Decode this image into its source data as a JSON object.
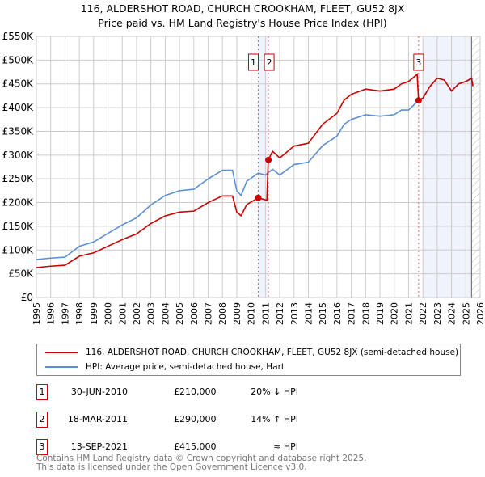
{
  "chart_data": {
    "type": "line",
    "title": "116, ALDERSHOT ROAD, CHURCH CROOKHAM, FLEET, GU52 8JX",
    "subtitle": "Price paid vs. HM Land Registry's House Price Index (HPI)",
    "xlim": [
      1995,
      2026
    ],
    "ylim": [
      0,
      550000
    ],
    "yticks": [
      0,
      50000,
      100000,
      150000,
      200000,
      250000,
      300000,
      350000,
      400000,
      450000,
      500000,
      550000
    ],
    "ytick_labels": [
      "£0",
      "£50K",
      "£100K",
      "£150K",
      "£200K",
      "£250K",
      "£300K",
      "£350K",
      "£400K",
      "£450K",
      "£500K",
      "£550K"
    ],
    "xticks": [
      1995,
      1996,
      1997,
      1998,
      1999,
      2000,
      2001,
      2002,
      2003,
      2004,
      2005,
      2006,
      2007,
      2008,
      2009,
      2010,
      2011,
      2012,
      2013,
      2014,
      2015,
      2016,
      2017,
      2018,
      2019,
      2020,
      2021,
      2022,
      2023,
      2024,
      2025,
      2026
    ],
    "grid": true,
    "series": [
      {
        "name": "116, ALDERSHOT ROAD, CHURCH CROOKHAM, FLEET, GU52 8JX (semi-detached house)",
        "color": "#cc0000",
        "x": [
          1995,
          1996,
          1997,
          1998,
          1999,
          2000,
          2001,
          2002,
          2003,
          2004,
          2005,
          2006,
          2007,
          2008,
          2008.7,
          2009.0,
          2009.3,
          2009.7,
          2010.5,
          2011.1,
          2011.2,
          2011.5,
          2012,
          2013,
          2014,
          2015,
          2016,
          2016.5,
          2017,
          2018,
          2019,
          2020,
          2020.5,
          2021,
          2021.6,
          2021.7,
          2022,
          2022.5,
          2023,
          2023.5,
          2024,
          2024.5,
          2025,
          2025.4,
          2025.5
        ],
        "y": [
          63000,
          66000,
          68000,
          87000,
          94000,
          108000,
          122000,
          134000,
          156000,
          172000,
          180000,
          182000,
          200000,
          214000,
          214000,
          180000,
          172000,
          196000,
          210000,
          205000,
          290000,
          308000,
          294000,
          319000,
          325000,
          365000,
          388000,
          416000,
          428000,
          439000,
          435000,
          439000,
          450000,
          455000,
          470000,
          415000,
          420000,
          445000,
          462000,
          458000,
          435000,
          450000,
          455000,
          462000,
          445000
        ]
      },
      {
        "name": "HPI: Average price, semi-detached house, Hart",
        "color": "#5b8fd4",
        "x": [
          1995,
          1996,
          1997,
          1998,
          1999,
          2000,
          2001,
          2002,
          2003,
          2004,
          2005,
          2006,
          2007,
          2008,
          2008.7,
          2009.0,
          2009.3,
          2009.7,
          2010.5,
          2011,
          2011.5,
          2012,
          2013,
          2014,
          2015,
          2016,
          2016.5,
          2017,
          2018,
          2019,
          2020,
          2020.5,
          2021,
          2021.7,
          2022,
          2022.5,
          2023,
          2023.5,
          2024,
          2024.5,
          2025,
          2025.5
        ],
        "y": [
          80000,
          83000,
          85000,
          108000,
          117000,
          135000,
          153000,
          168000,
          195000,
          215000,
          225000,
          228000,
          250000,
          268000,
          268000,
          225000,
          215000,
          245000,
          262000,
          258000,
          270000,
          258000,
          280000,
          285000,
          320000,
          340000,
          365000,
          375000,
          385000,
          382000,
          385000,
          395000,
          395000,
          415000,
          420000,
          445000,
          462000,
          458000,
          435000,
          450000,
          455000,
          462000
        ]
      }
    ],
    "sales": [
      {
        "label": "1",
        "date": "30-JUN-2010",
        "x": 2010.5,
        "price": "£210,000",
        "value": 210000,
        "hpi": "20% ↓ HPI"
      },
      {
        "label": "2",
        "date": "18-MAR-2011",
        "x": 2011.21,
        "price": "£290,000",
        "value": 290000,
        "hpi": "14% ↑ HPI"
      },
      {
        "label": "3",
        "date": "13-SEP-2021",
        "x": 2021.7,
        "price": "£415,000",
        "value": 415000,
        "hpi": "≈ HPI"
      }
    ]
  },
  "footer": [
    "Contains HM Land Registry data © Crown copyright and database right 2025.",
    "This data is licensed under the Open Government Licence v3.0."
  ]
}
